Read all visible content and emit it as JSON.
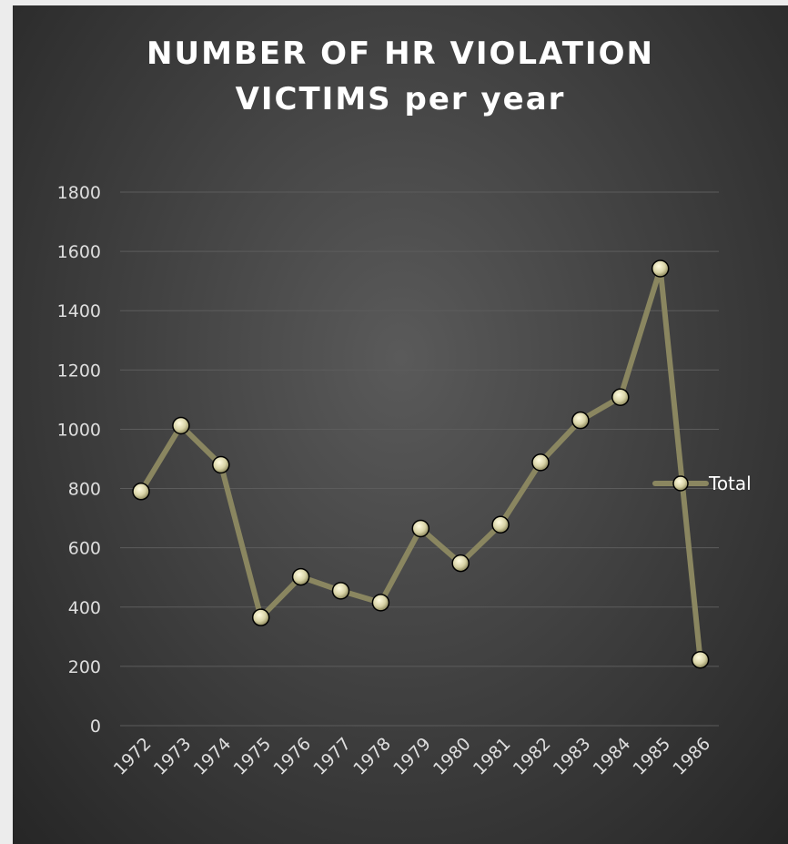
{
  "chart_data": {
    "type": "line",
    "title_lines": [
      "NUMBER OF HR VIOLATION",
      "VICTIMS per year"
    ],
    "xlabel": "",
    "ylabel": "",
    "ylim": [
      0,
      1800
    ],
    "yticks": [
      0,
      200,
      400,
      600,
      800,
      1000,
      1200,
      1400,
      1600,
      1800
    ],
    "categories": [
      "1972",
      "1973",
      "1974",
      "1975",
      "1976",
      "1977",
      "1978",
      "1979",
      "1980",
      "1981",
      "1982",
      "1983",
      "1984",
      "1985",
      "1986"
    ],
    "series": [
      {
        "name": "Total",
        "values": [
          790,
          1012,
          880,
          365,
          502,
          455,
          415,
          665,
          548,
          678,
          888,
          1030,
          1108,
          1542,
          222
        ]
      }
    ],
    "grid": true,
    "legend_position": "right",
    "colors": {
      "line": "#8a8660",
      "marker_fill": "#d8d3a6",
      "marker_stroke": "#000000"
    }
  }
}
